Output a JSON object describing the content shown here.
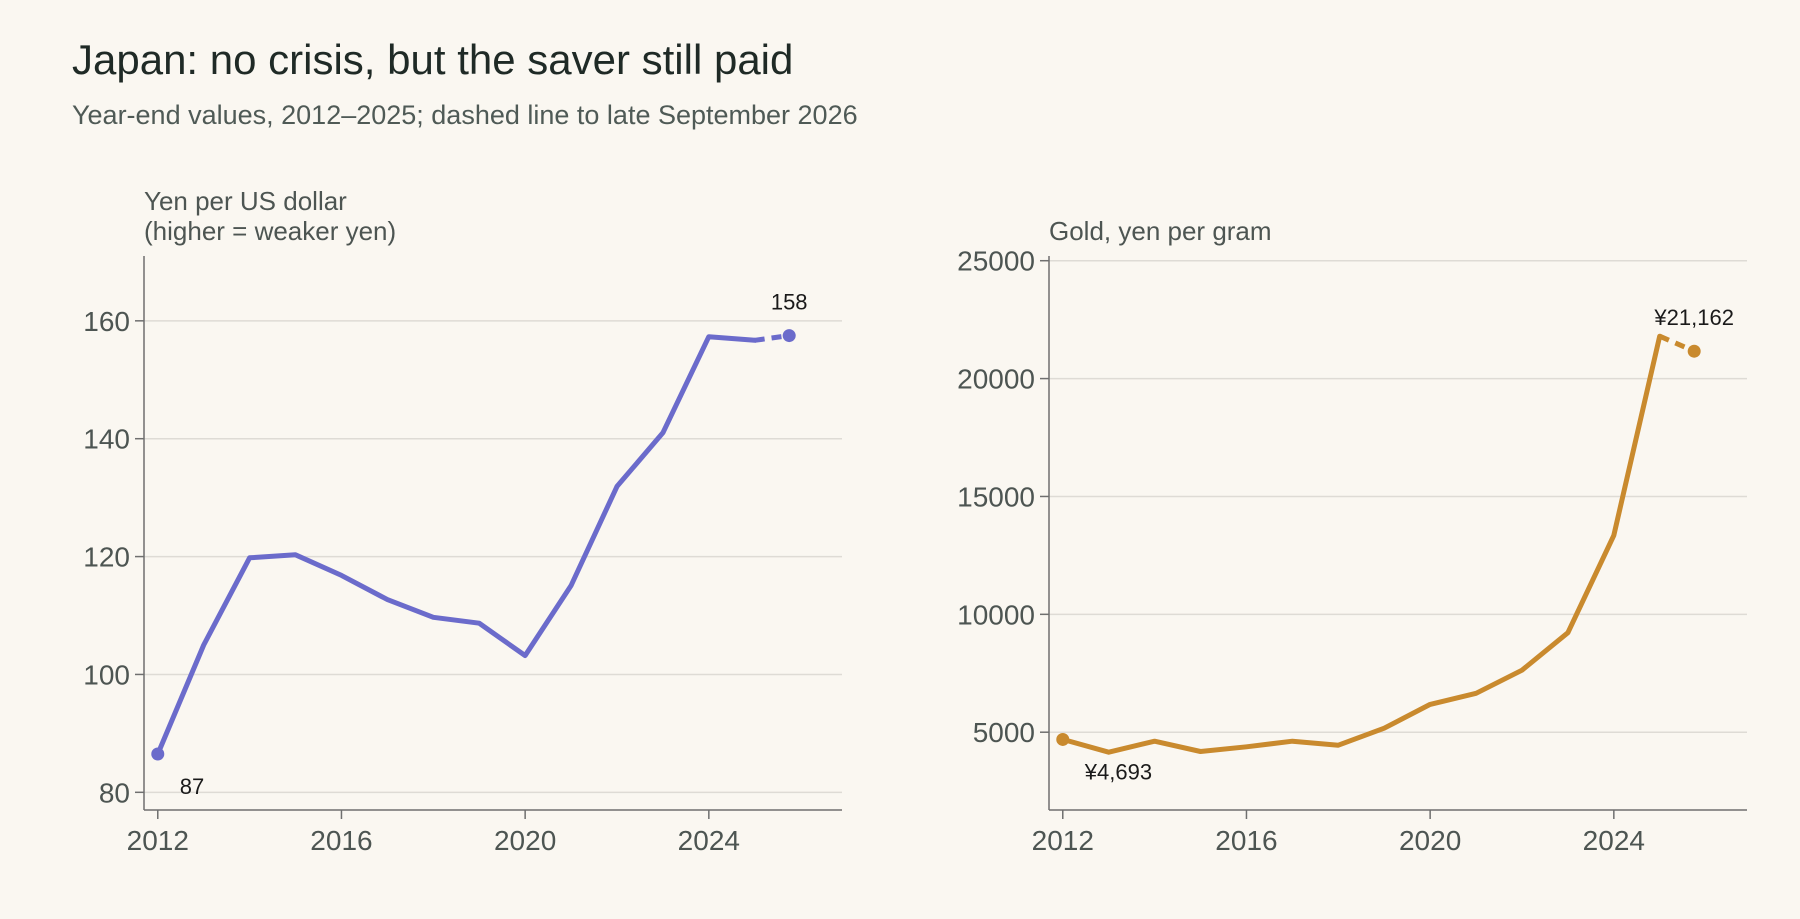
{
  "title": "Japan: no crisis, but the saver still paid",
  "subtitle": "Year-end values, 2012–2025; dashed line to late September 2026",
  "chart_data": [
    {
      "type": "line",
      "ylabel_lines": [
        "Yen per US dollar",
        "(higher = weaker yen)"
      ],
      "xlim": [
        2011.7,
        2026.9
      ],
      "ylim": [
        77,
        171
      ],
      "xticks": [
        2012,
        2016,
        2020,
        2024
      ],
      "xtick_labels": [
        "2012",
        "2016",
        "2020",
        "2024"
      ],
      "yticks": [
        80,
        100,
        120,
        140,
        160
      ],
      "ytick_labels": [
        "80",
        "100",
        "120",
        "140",
        "160"
      ],
      "grid": true,
      "color": "#6b6bcb",
      "series": [
        {
          "x": [
            2012,
            2013,
            2014,
            2015,
            2016,
            2017,
            2018,
            2019,
            2020,
            2021,
            2022,
            2023,
            2024,
            2025
          ],
          "values": [
            86.5,
            105.0,
            119.8,
            120.3,
            116.8,
            112.7,
            109.7,
            108.7,
            103.2,
            115.1,
            131.9,
            141.0,
            157.3,
            156.7
          ]
        }
      ],
      "projection": {
        "x": [
          2025,
          2025.75
        ],
        "values": [
          156.7,
          157.5
        ]
      },
      "annotations": [
        {
          "text": "87",
          "x": 2012,
          "y": 86.5,
          "position": "below-right"
        },
        {
          "text": "158",
          "x": 2025.75,
          "y": 157.5,
          "position": "above"
        }
      ]
    },
    {
      "type": "line",
      "ylabel_lines": [
        "Gold, yen per gram"
      ],
      "xlim": [
        2011.7,
        2026.9
      ],
      "ylim": [
        1700,
        25200
      ],
      "xticks": [
        2012,
        2016,
        2020,
        2024
      ],
      "xtick_labels": [
        "2012",
        "2016",
        "2020",
        "2024"
      ],
      "yticks": [
        5000,
        10000,
        15000,
        20000,
        25000
      ],
      "ytick_labels": [
        "5000",
        "10000",
        "15000",
        "20000",
        "25000"
      ],
      "grid": true,
      "color": "#c98a2e",
      "series": [
        {
          "x": [
            2012,
            2013,
            2014,
            2015,
            2016,
            2017,
            2018,
            2019,
            2020,
            2021,
            2022,
            2023,
            2024,
            2025
          ],
          "values": [
            4693,
            4150,
            4620,
            4180,
            4380,
            4620,
            4450,
            5170,
            6180,
            6650,
            7630,
            9220,
            13350,
            21800
          ]
        }
      ],
      "projection": {
        "x": [
          2025,
          2025.75
        ],
        "values": [
          21800,
          21162
        ]
      },
      "annotations": [
        {
          "text": "¥4,693",
          "x": 2012,
          "y": 4693,
          "position": "below-right"
        },
        {
          "text": "¥21,162",
          "x": 2025.75,
          "y": 21162,
          "position": "above"
        }
      ]
    }
  ]
}
